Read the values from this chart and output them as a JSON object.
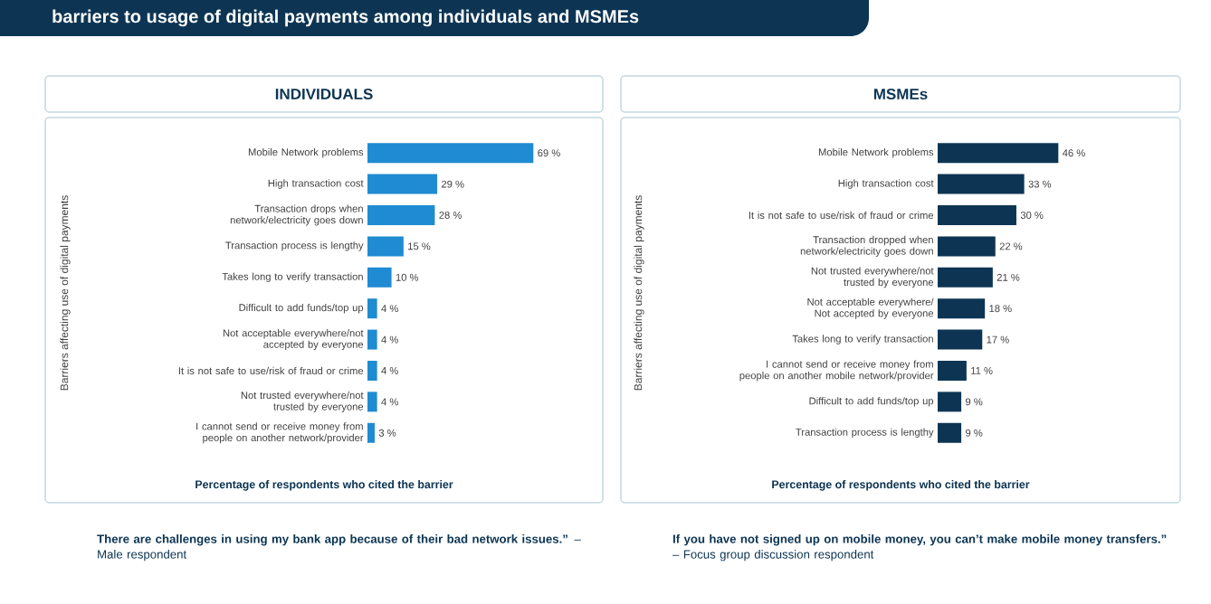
{
  "chart_data": [
    {
      "type": "bar",
      "orientation": "horizontal",
      "title": "INDIVIDUALS",
      "xlabel": "Percentage of respondents who cited the barrier",
      "ylabel": "Barriers affecting use of digital payments",
      "color": "#1f8bd2",
      "categories": [
        "Mobile Network problems",
        "High transaction cost",
        "Transaction drops when network/electricity goes down",
        "Transaction process is lengthy",
        "Takes long to verify transaction",
        "Difficult to add funds/top up",
        "Not acceptable everywhere/not accepted by everyone",
        "It is not safe to use/risk of fraud or crime",
        "Not trusted everywhere/not trusted by everyone",
        "I cannot send or receive money from people on another network/provider"
      ],
      "values": [
        69,
        29,
        28,
        15,
        10,
        4,
        4,
        4,
        4,
        3
      ],
      "value_labels": [
        "69 %",
        "29 %",
        "28 %",
        "15 %",
        "10 %",
        "4 %",
        "4 %",
        "4 %",
        "4 %",
        "3 %"
      ],
      "annotations": [
        "barriers to usage of digital payments among individuals and MSMEs",
        "**There are challenges in using my bank app because of their bad network issues.”** – Male respondent"
      ]
    },
    {
      "type": "bar",
      "orientation": "horizontal",
      "title": "MSMEs",
      "xlabel": "Percentage of respondents who cited the barrier",
      "ylabel": "Barriers affecting use of digital payments",
      "color": "#0d3553",
      "categories": [
        "Mobile Network problems",
        "High transaction cost",
        "It is not safe to use/risk of fraud or crime",
        "Transaction dropped when network/electricity goes down",
        "Not trusted everywhere/not trusted by everyone",
        "Not acceptable everywhere/ Not accepted by everyone",
        "Takes long to verify transaction",
        "I cannot send or receive money from people on another mobile network/provider",
        "Difficult to add funds/top up",
        "Transaction process is lengthy"
      ],
      "values": [
        46,
        33,
        30,
        22,
        21,
        18,
        17,
        11,
        9,
        9
      ],
      "value_labels": [
        "46 %",
        "33 %",
        "30 %",
        "22 %",
        "21 %",
        "18 %",
        "17 %",
        "11 %",
        "9 %",
        "9 %"
      ],
      "annotations": [
        "**If you have not signed up on mobile money, you can’t make mobile money transfers.”**",
        "– Focus group discussion respondent"
      ]
    }
  ]
}
